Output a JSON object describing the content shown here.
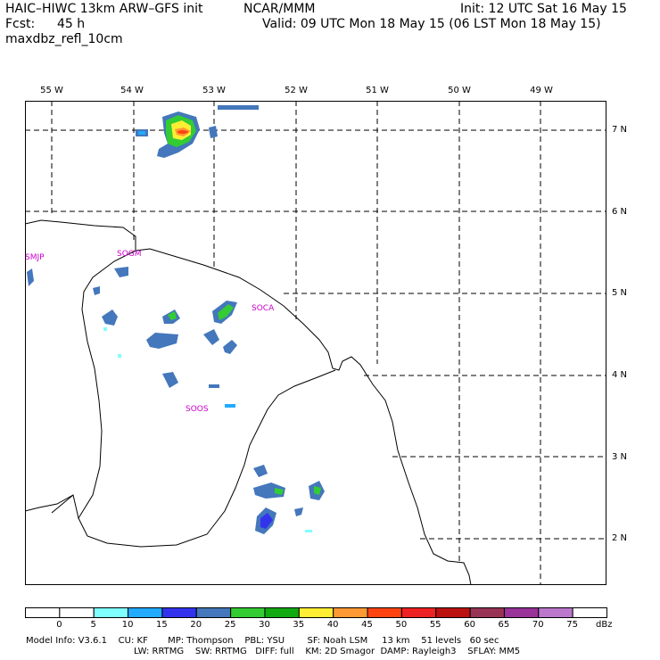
{
  "header": {
    "title": "HAIC–HIWC 13km ARW–GFS init",
    "org": "NCAR/MMM",
    "init": "Init: 12 UTC Sat 16 May 15",
    "fcst_label": "Fcst:",
    "fcst_value": "45 h",
    "valid": "Valid: 09 UTC Mon 18 May 15 (06 LST Mon 18 May 15)",
    "field": "maxdbz_refl_10cm"
  },
  "map": {
    "lon_labels": [
      "55 W",
      "54 W",
      "53 W",
      "52 W",
      "51 W",
      "50 W",
      "49 W"
    ],
    "lat_labels": [
      "7 N",
      "6 N",
      "5 N",
      "4 N",
      "3 N",
      "2 N"
    ],
    "stations": [
      "SMJP",
      "SOGM",
      "SOCA",
      "SOOS"
    ]
  },
  "colorbar": {
    "ticks": [
      "0",
      "5",
      "10",
      "15",
      "20",
      "25",
      "30",
      "35",
      "40",
      "45",
      "50",
      "55",
      "60",
      "65",
      "70",
      "75"
    ],
    "colors": [
      "#ffffff",
      "#ffffff",
      "#7fffff",
      "#22aaff",
      "#3333ee",
      "#4477bb",
      "#33cc33",
      "#11aa11",
      "#ffee33",
      "#ff9933",
      "#ff4411",
      "#ee2222",
      "#bb1111",
      "#993355",
      "#993399",
      "#bb77cc",
      "#ffffff"
    ],
    "unit": "dBz"
  },
  "footer": {
    "line1": "Model Info: V3.6.1    CU: KF       MP: Thompson    PBL: YSU        SF: Noah LSM     13 km    51 levels   60 sec",
    "line2": "LW: RRTMG    SW: RRTMG   DIFF: full    KM: 2D Smagor  DAMP: Rayleigh3    SFLAY: MM5"
  }
}
